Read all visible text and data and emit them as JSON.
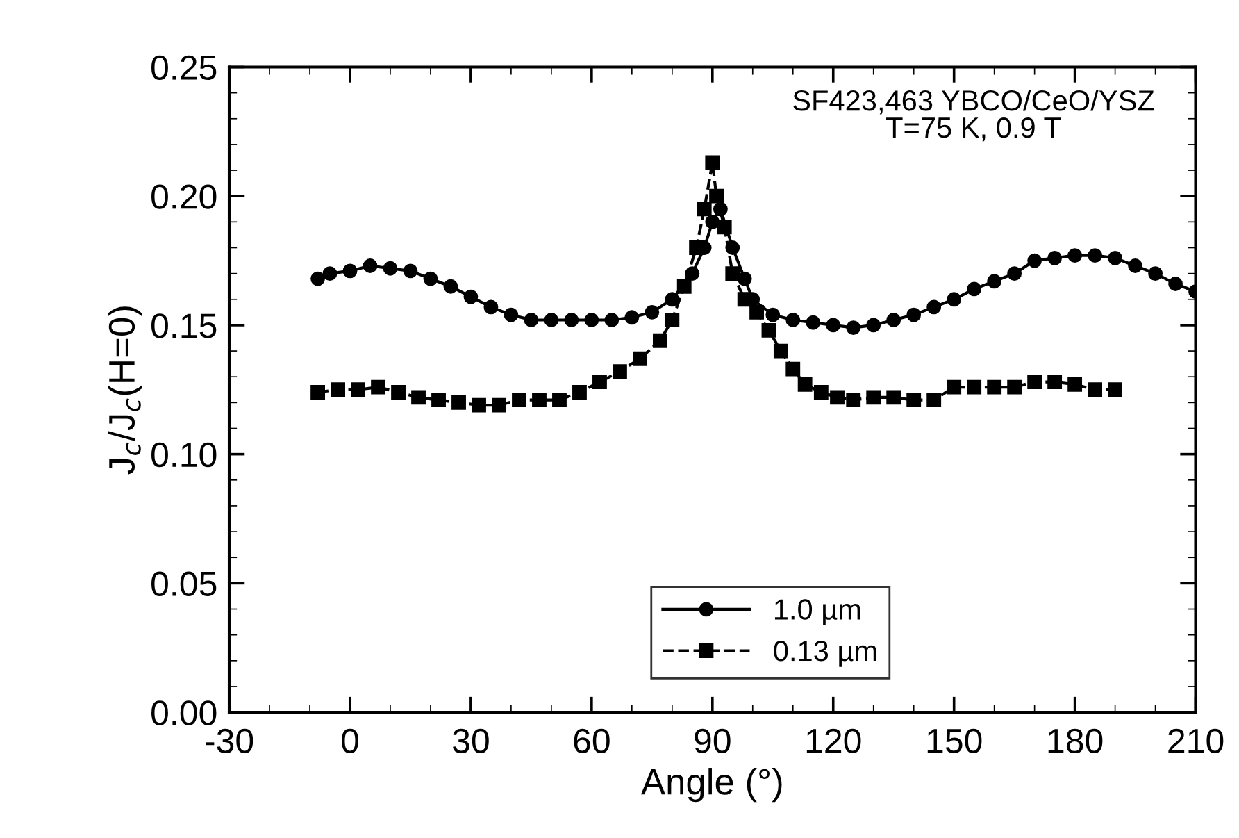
{
  "chart_data": {
    "type": "line",
    "xlabel": "Angle (°)",
    "ylabel": "J$_{c}$/J$_{c}$(H=0)",
    "annotations": [
      "SF423,463 YBCO/CeO/YSZ\nT=75 K, 0.9 T"
    ],
    "xlim": [
      -30,
      210
    ],
    "xticks": [
      -30,
      0,
      30,
      60,
      90,
      120,
      150,
      180,
      210
    ],
    "ylim": [
      0,
      0.25
    ],
    "yticks": [
      {
        "value": 0,
        "label": "0.00"
      },
      {
        "value": 0.05,
        "label": "0.05"
      },
      {
        "value": 0.1,
        "label": "0.10"
      },
      {
        "value": 0.15,
        "label": "0.15"
      },
      {
        "value": 0.2,
        "label": "0.20"
      },
      {
        "value": 0.25,
        "label": "0.25"
      }
    ],
    "grid": false,
    "legend": "bottom",
    "series": [
      {
        "name": "1.0 µm",
        "color": "#000000",
        "marker": "circle",
        "line_style": "solid",
        "x": [
          -8,
          -5,
          0,
          5,
          10,
          15,
          20,
          25,
          30,
          35,
          40,
          45,
          50,
          55,
          60,
          65,
          70,
          75,
          80,
          85,
          88,
          90,
          92,
          95,
          98,
          100,
          105,
          110,
          115,
          120,
          125,
          130,
          135,
          140,
          145,
          150,
          155,
          160,
          165,
          170,
          175,
          180,
          185,
          190,
          195,
          200,
          205,
          210
        ],
        "values": [
          0.168,
          0.17,
          0.171,
          0.173,
          0.172,
          0.171,
          0.168,
          0.165,
          0.161,
          0.157,
          0.154,
          0.152,
          0.152,
          0.152,
          0.152,
          0.152,
          0.153,
          0.155,
          0.16,
          0.17,
          0.18,
          0.19,
          0.195,
          0.18,
          0.168,
          0.16,
          0.154,
          0.152,
          0.151,
          0.15,
          0.149,
          0.15,
          0.152,
          0.154,
          0.157,
          0.16,
          0.164,
          0.167,
          0.17,
          0.175,
          0.176,
          0.177,
          0.177,
          0.176,
          0.173,
          0.17,
          0.166,
          0.163
        ]
      },
      {
        "name": "0.13 µm",
        "color": "#000000",
        "marker": "square",
        "line_style": "dashed",
        "x": [
          -8,
          -3,
          2,
          7,
          12,
          17,
          22,
          27,
          32,
          37,
          42,
          47,
          52,
          57,
          62,
          67,
          72,
          77,
          80,
          83,
          86,
          88,
          90,
          91,
          93,
          95,
          98,
          101,
          104,
          107,
          110,
          113,
          117,
          121,
          125,
          130,
          135,
          140,
          145,
          150,
          155,
          160,
          165,
          170,
          175,
          180,
          185,
          190
        ],
        "values": [
          0.124,
          0.125,
          0.125,
          0.126,
          0.124,
          0.122,
          0.121,
          0.12,
          0.119,
          0.119,
          0.121,
          0.121,
          0.121,
          0.124,
          0.128,
          0.132,
          0.137,
          0.144,
          0.152,
          0.165,
          0.18,
          0.195,
          0.213,
          0.2,
          0.188,
          0.17,
          0.16,
          0.155,
          0.148,
          0.14,
          0.133,
          0.127,
          0.124,
          0.122,
          0.121,
          0.122,
          0.122,
          0.121,
          0.121,
          0.126,
          0.126,
          0.126,
          0.126,
          0.128,
          0.128,
          0.127,
          0.125,
          0.125
        ]
      }
    ]
  }
}
